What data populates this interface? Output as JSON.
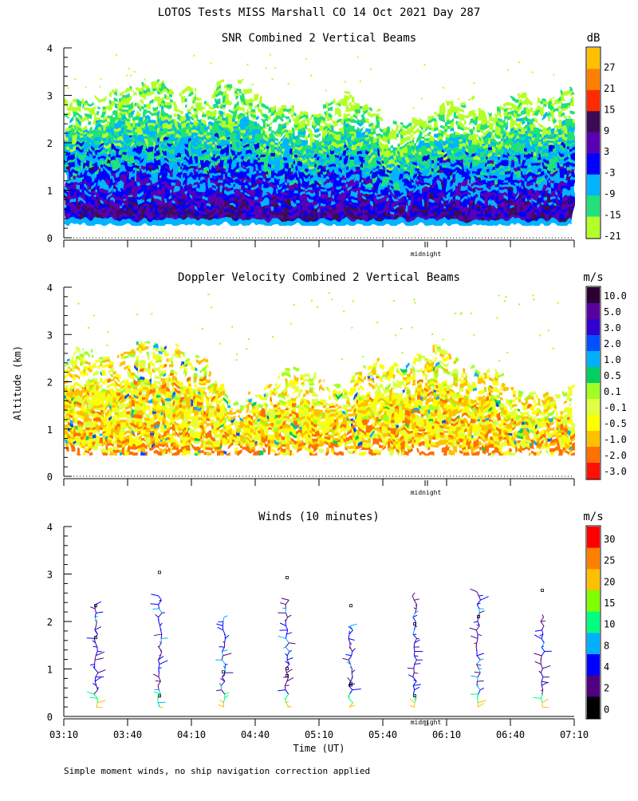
{
  "page": {
    "title": "LOTOS Tests MISS Marshall CO  14 Oct 2021 Day 287",
    "y_axis_label": "Altitude (km)",
    "x_axis_label": "Time (UT)",
    "footnote": "Simple moment winds, no ship navigation correction applied",
    "midnight_label": "midnight"
  },
  "chart_data": [
    {
      "type": "heatmap",
      "title": "SNR Combined 2 Vertical Beams",
      "colorbar_unit": "dB",
      "colorbar_labels": [
        "27",
        "21",
        "15",
        "9",
        "3",
        "-3",
        "-9",
        "-15",
        "-21"
      ],
      "colorbar_colors": [
        "#ffc000",
        "#ff7f00",
        "#ff2a00",
        "#3c0a55",
        "#5a00b4",
        "#0000ff",
        "#00b4ff",
        "#22e07a",
        "#b4ff28"
      ],
      "ylim": [
        0,
        4
      ],
      "y_ticks": [
        "0",
        "1",
        "2",
        "3",
        "4"
      ],
      "xlim_hours": [
        3.1667,
        7.1667
      ]
    },
    {
      "type": "heatmap",
      "title": "Doppler Velocity Combined 2 Vertical Beams",
      "colorbar_unit": "m/s",
      "colorbar_labels": [
        "10.0",
        "5.0",
        "3.0",
        "2.0",
        "1.0",
        "0.5",
        "0.1",
        "-0.1",
        "-0.5",
        "-1.0",
        "-2.0",
        "-3.0"
      ],
      "colorbar_colors": [
        "#2a0033",
        "#5a00a0",
        "#3000d0",
        "#0050ff",
        "#00b0ff",
        "#00d060",
        "#a0ff20",
        "#e0ff40",
        "#ffff00",
        "#ffc000",
        "#ff7000",
        "#ff1000"
      ],
      "ylim": [
        0,
        4
      ],
      "y_ticks": [
        "0",
        "1",
        "2",
        "3",
        "4"
      ],
      "xlim_hours": [
        3.1667,
        7.1667
      ]
    },
    {
      "type": "scatter",
      "title": "Winds (10 minutes)",
      "colorbar_unit": "m/s",
      "colorbar_labels": [
        "30",
        "25",
        "20",
        "15",
        "10",
        "8",
        "4",
        "2",
        "0"
      ],
      "colorbar_colors": [
        "#ff0000",
        "#ff7f00",
        "#ffc000",
        "#80ff00",
        "#00ff80",
        "#00b0ff",
        "#0000ff",
        "#500080",
        "#000000"
      ],
      "ylim": [
        0,
        4
      ],
      "y_ticks": [
        "0",
        "1",
        "2",
        "3",
        "4"
      ],
      "x_tick_labels": [
        "03:10",
        "03:40",
        "04:10",
        "04:40",
        "05:10",
        "05:40",
        "06:10",
        "06:40",
        "07:10"
      ],
      "profile_times": [
        "03:25",
        "03:55",
        "04:25",
        "04:55",
        "05:25",
        "05:55",
        "06:25",
        "06:55"
      ]
    }
  ]
}
